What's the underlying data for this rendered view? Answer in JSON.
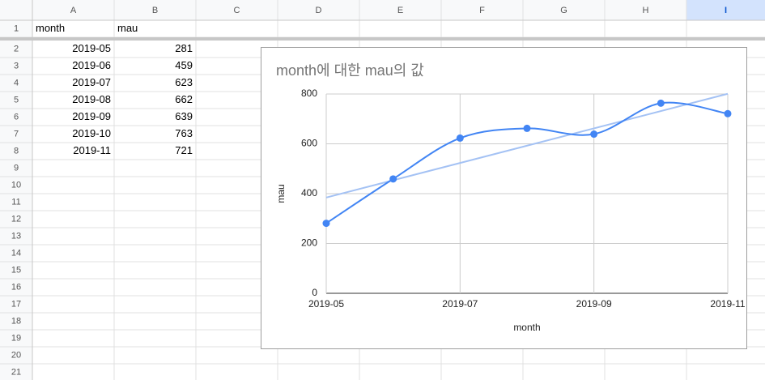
{
  "sheet": {
    "columns": [
      "A",
      "B",
      "C",
      "D",
      "E",
      "F",
      "G",
      "H",
      "I"
    ],
    "selected_column": "I",
    "rows": [
      1,
      2,
      3,
      4,
      5,
      6,
      7,
      8,
      9,
      10,
      11,
      12,
      13,
      14,
      15,
      16,
      17,
      18,
      19,
      20,
      21
    ]
  },
  "chart_data": {
    "type": "line",
    "title": "month에 대한 mau의 값",
    "x_label": "month",
    "y_label": "mau",
    "x": [
      "2019-05",
      "2019-06",
      "2019-07",
      "2019-08",
      "2019-09",
      "2019-10",
      "2019-11"
    ],
    "series": [
      {
        "color": "#4285f4",
        "values": [
          281,
          459,
          623,
          662,
          639,
          763,
          721
        ]
      }
    ],
    "xlim": [
      "2019-05",
      "2019-11"
    ],
    "xticks": [
      "2019-05",
      "2019-07",
      "2019-09",
      "2019-11"
    ],
    "ylim": [
      0,
      800
    ],
    "yticks": [
      0,
      200,
      400,
      600,
      800
    ],
    "grid": true,
    "smooth": true,
    "trendline": {
      "type": "linear",
      "color": "#a4c2f4"
    }
  }
}
